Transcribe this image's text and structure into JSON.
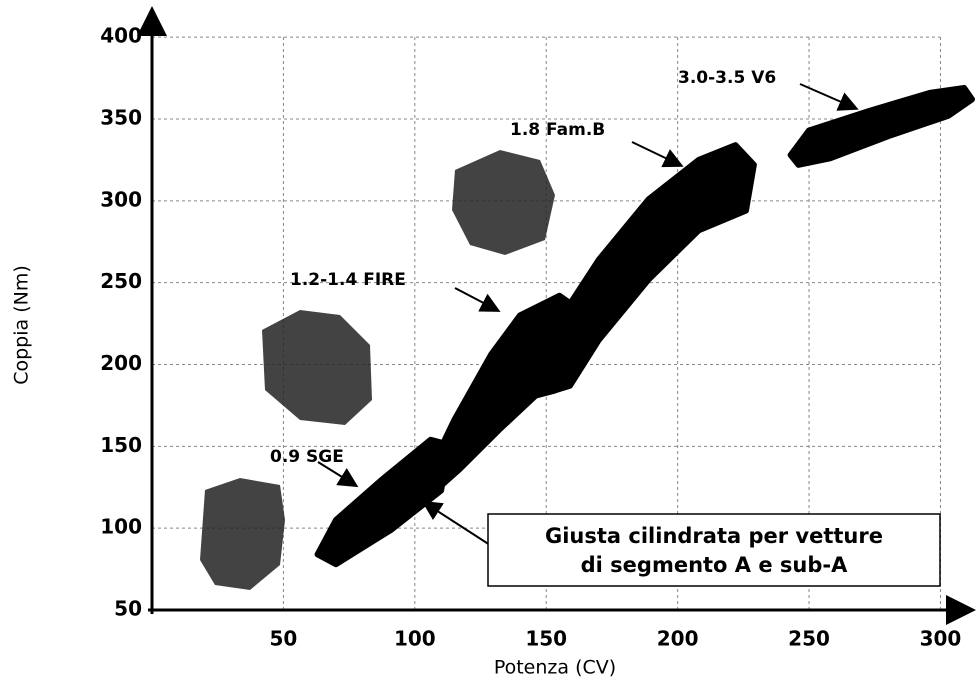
{
  "chart_data": {
    "type": "region",
    "x_label": "Potenza (CV)",
    "y_label": "Coppia (Nm)",
    "xlim": [
      0,
      312
    ],
    "ylim": [
      50,
      405
    ],
    "xticks": [
      50,
      100,
      150,
      200,
      250,
      300
    ],
    "yticks": [
      50,
      100,
      150,
      200,
      250,
      300,
      350,
      400
    ],
    "grid": true,
    "color": "#000000",
    "regions": [
      {
        "name": "0.9 SGE",
        "x": [
          63,
          70,
          87,
          106,
          113,
          110,
          91,
          70
        ],
        "y": [
          84,
          105,
          129,
          154,
          151,
          123,
          99,
          78
        ]
      },
      {
        "name": "1.2-1.4 FIRE",
        "x": [
          106,
          115,
          129,
          140,
          155,
          163,
          159,
          153,
          146,
          132,
          117,
          110
        ],
        "y": [
          136,
          166,
          206,
          230,
          242,
          233,
          203,
          184,
          181,
          160,
          136,
          126
        ]
      },
      {
        "name": "1.8 Fam.B",
        "x": [
          149,
          155,
          170,
          189,
          208,
          222,
          229,
          226,
          208,
          189,
          170,
          159,
          153
        ],
        "y": [
          197,
          227,
          264,
          301,
          325,
          334,
          322,
          294,
          282,
          252,
          215,
          187,
          184
        ]
      },
      {
        "name": "3.0-3.5 V6",
        "x": [
          243,
          250,
          273,
          296,
          309,
          312,
          303,
          281,
          258,
          246
        ],
        "y": [
          328,
          343,
          355,
          366,
          369,
          362,
          352,
          340,
          326,
          322
        ]
      }
    ],
    "annotation": [
      "Giusta cilindrata per vetture",
      "di segmento A e sub-A"
    ]
  }
}
